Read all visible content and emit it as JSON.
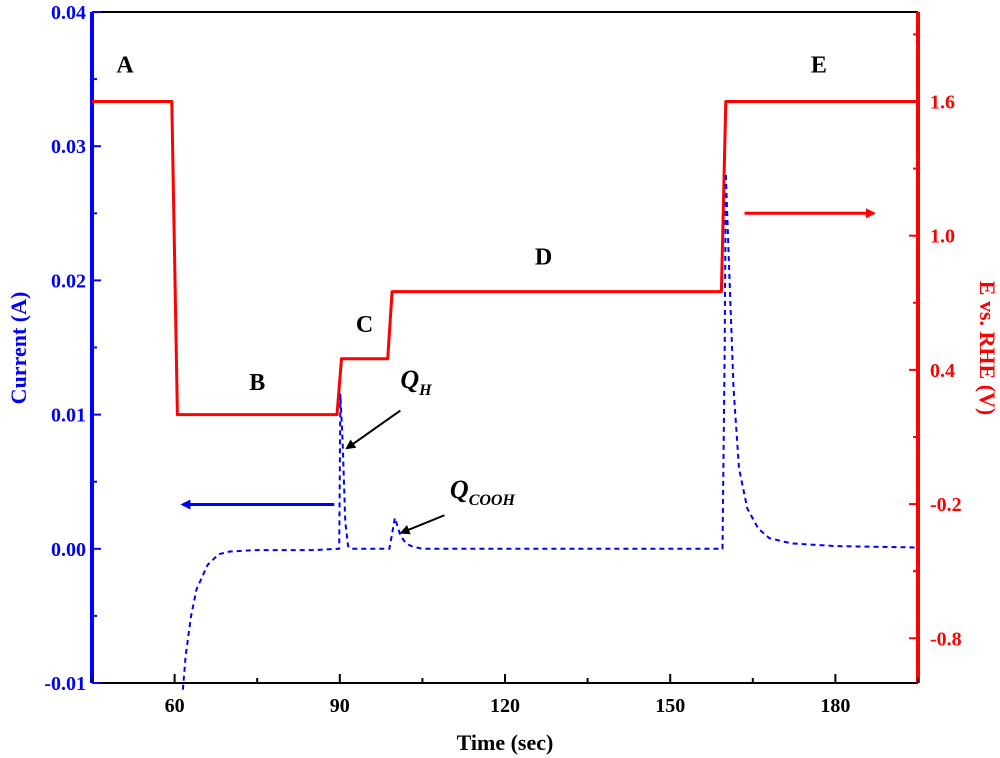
{
  "chart_data": {
    "type": "line",
    "title": "",
    "xlabel": "Time (sec)",
    "ylabel_left": "Current (A)",
    "ylabel_right": "E vs. RHE (V)",
    "xlim": [
      45,
      195
    ],
    "ylim_left": [
      -0.01,
      0.04
    ],
    "ylim_right": [
      -1.0,
      2.0
    ],
    "x_ticks": [
      60,
      90,
      120,
      150,
      180
    ],
    "y_ticks_left": [
      "-0.01",
      "0.00",
      "0.01",
      "0.02",
      "0.03",
      "0.04"
    ],
    "y_ticks_right": [
      "-0.8",
      "-0.2",
      "0.4",
      "1.0",
      "1.6"
    ],
    "grid": false,
    "colors": {
      "current": "#0000ff",
      "potential": "#ff0000",
      "left_axis": "#0000ff",
      "right_axis": "#ff0000",
      "bottom_axis": "#000000"
    },
    "series": [
      {
        "axis": "right",
        "style": "solid",
        "color": "#ff0000",
        "x": [
          45,
          59.5,
          60.5,
          89.5,
          90.3,
          98.7,
          99.5,
          159.3,
          160.1,
          195
        ],
        "y": [
          1.6,
          1.6,
          0.2,
          0.2,
          0.45,
          0.45,
          0.75,
          0.75,
          1.6,
          1.6
        ]
      },
      {
        "axis": "left",
        "style": "dashed",
        "color": "#0000ff",
        "x": [
          61.5,
          62,
          63,
          64,
          66,
          68,
          70,
          75,
          85,
          89.9,
          90.1,
          90.5,
          91,
          91.5,
          92,
          99,
          100,
          101,
          102,
          103,
          104,
          105,
          110,
          159.5,
          159.9,
          160.1,
          160.6,
          161.5,
          162.5,
          164,
          166,
          168,
          172,
          180,
          195
        ],
        "y": [
          -0.0105,
          -0.008,
          -0.005,
          -0.003,
          -0.0012,
          -0.0004,
          -0.0002,
          -0.0001,
          -0.0001,
          0.0,
          0.0115,
          0.008,
          0.002,
          0.0002,
          0.0,
          0.0,
          0.0023,
          0.001,
          0.0004,
          0.0002,
          0.0001,
          0.0,
          0.0,
          0.0,
          0.015,
          0.028,
          0.022,
          0.012,
          0.006,
          0.003,
          0.0015,
          0.0008,
          0.0004,
          0.0002,
          0.0001
        ]
      }
    ],
    "segment_labels": [
      {
        "text": "A",
        "x": 51,
        "y": 1.73
      },
      {
        "text": "B",
        "x": 75,
        "y": 0.31
      },
      {
        "text": "C",
        "x": 94.5,
        "y": 0.57
      },
      {
        "text": "D",
        "x": 127,
        "y": 0.87
      },
      {
        "text": "E",
        "x": 177,
        "y": 1.73
      }
    ],
    "annotations": [
      {
        "main": "Q",
        "sub": "H",
        "text_x": 101,
        "text_y": 0.012,
        "arrow_from": [
          101,
          0.0103
        ],
        "arrow_to": [
          91.3,
          0.0075
        ]
      },
      {
        "main": "Q",
        "sub": "COOH",
        "text_x": 110,
        "text_y": 0.0038,
        "arrow_from": [
          109,
          0.0025
        ],
        "arrow_to": [
          101.2,
          0.0012
        ]
      }
    ],
    "axis_arrows": [
      {
        "direction": "left",
        "axis": "left",
        "x_from": 89,
        "x_to": 62.5,
        "y": 0.0033
      },
      {
        "direction": "right",
        "axis": "right",
        "x_from": 163.5,
        "x_to": 187,
        "y": 1.1
      }
    ]
  }
}
